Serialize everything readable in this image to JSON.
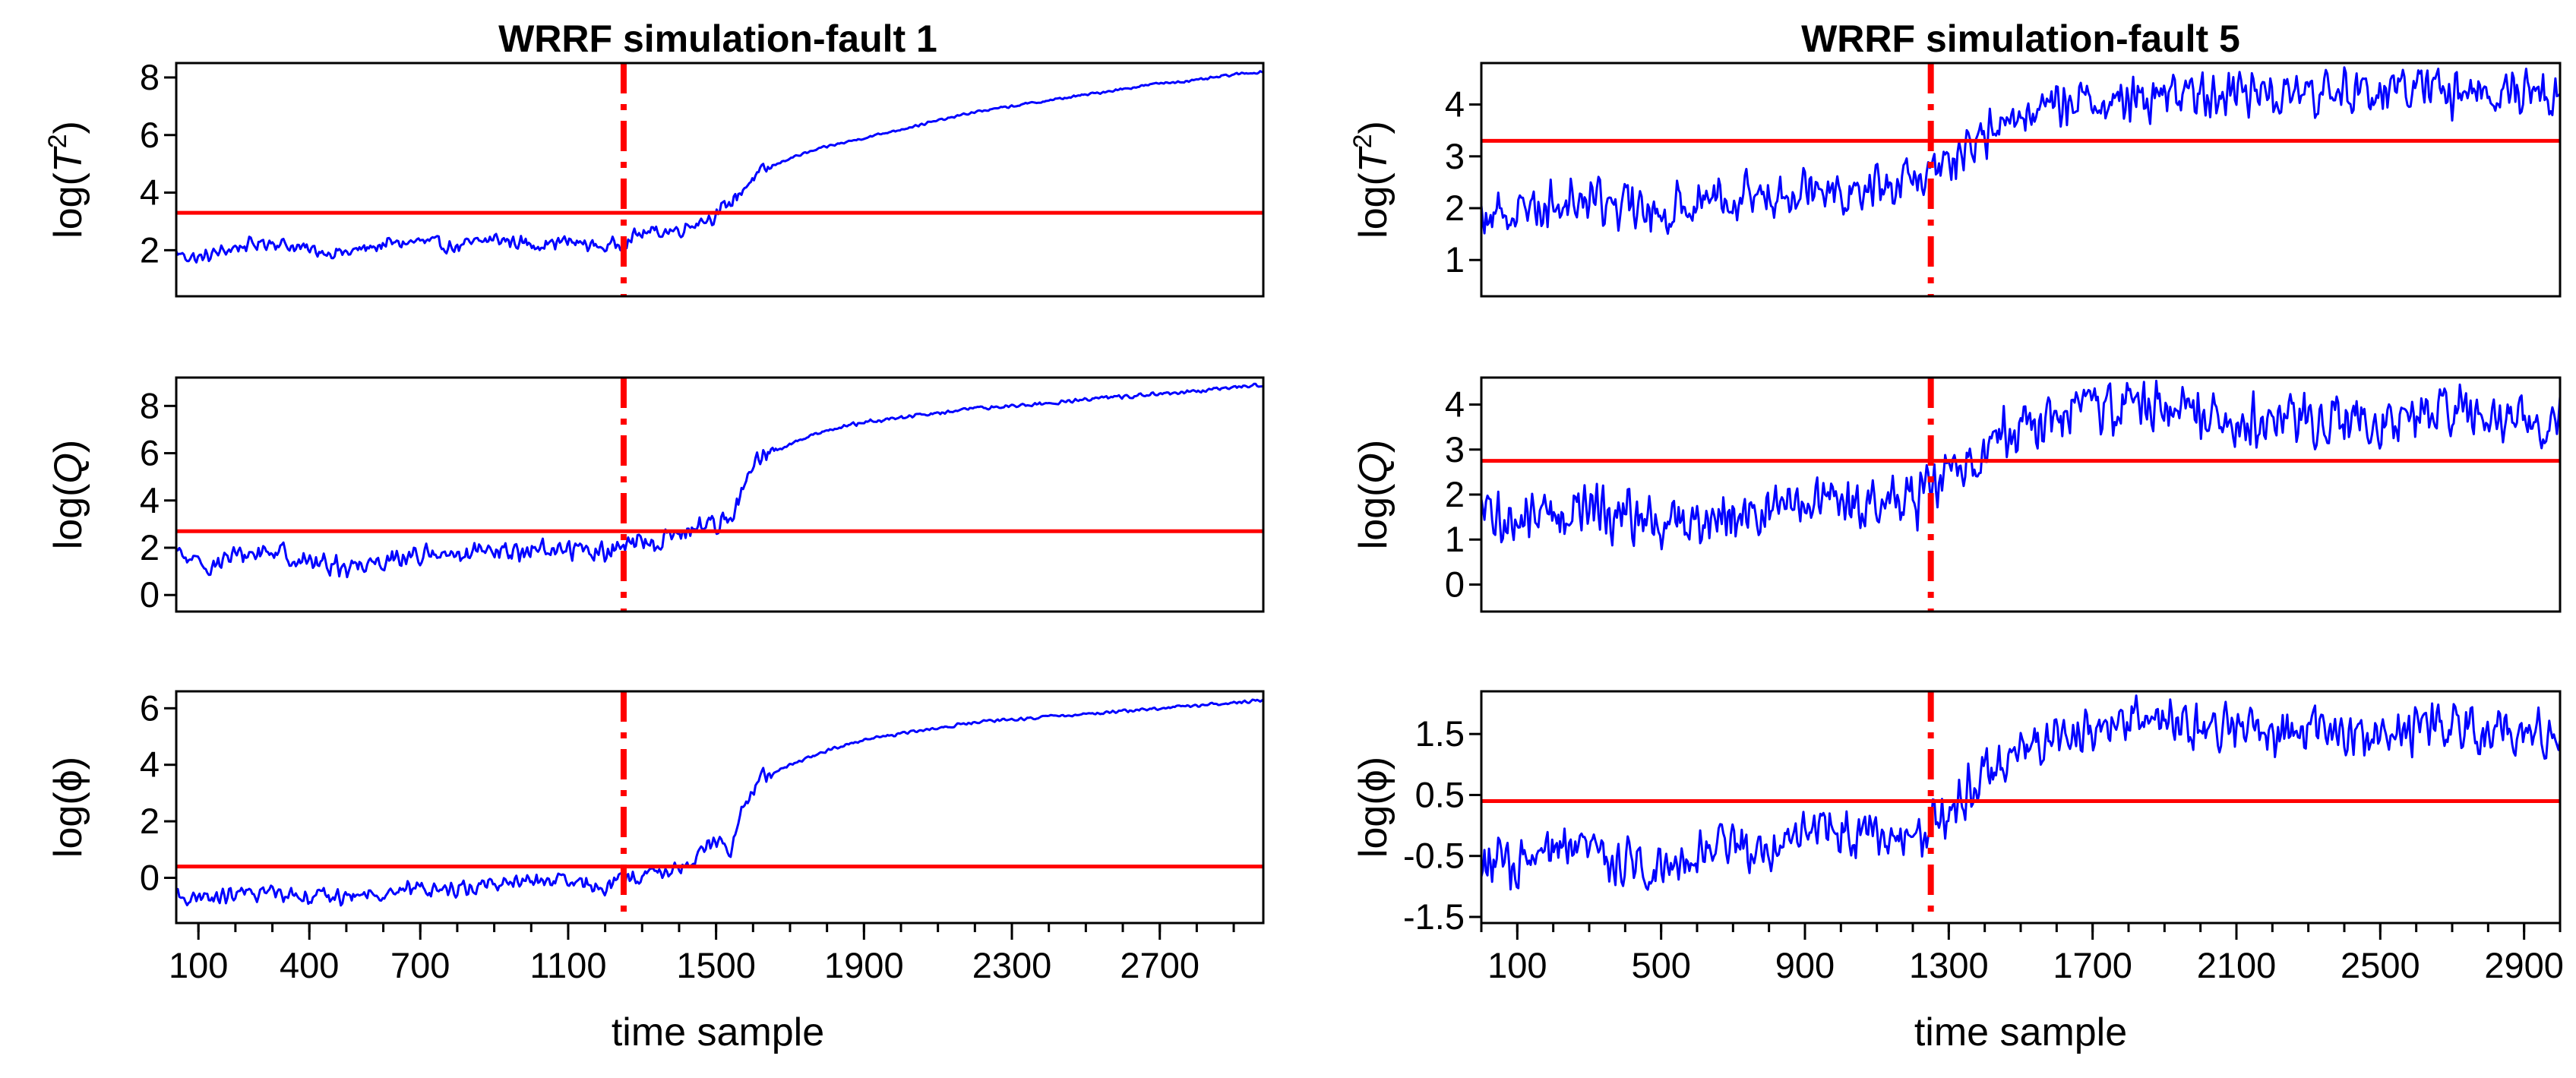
{
  "figure": {
    "xlabel": "time sample",
    "colors": {
      "series": "#0000ff",
      "threshold": "#ff0000",
      "fault": "#ff0000",
      "axis": "#000000"
    }
  },
  "chart_data": [
    {
      "type": "line",
      "column": "left",
      "row": 0,
      "title": "WRRF simulation-fault 1",
      "ylabel": "log(T²)",
      "ylabel_main": "log(",
      "ylabel_var": "T",
      "ylabel_sup": "2",
      "ylabel_close": ")",
      "xlim": [
        40,
        2980
      ],
      "ylim": [
        0.4,
        8.5
      ],
      "yticks": [
        2,
        4,
        6,
        8
      ],
      "ytick_labels": [
        "2",
        "4",
        "6",
        "8"
      ],
      "xticks": [],
      "xtick_labels": [],
      "fault_x": 1250,
      "threshold": 3.3,
      "series": {
        "name": "log(T²)",
        "x": [
          40,
          100,
          200,
          300,
          400,
          500,
          600,
          700,
          800,
          900,
          1000,
          1100,
          1200,
          1250,
          1300,
          1400,
          1450,
          1500,
          1550,
          1600,
          1650,
          1700,
          1800,
          1900,
          2000,
          2100,
          2200,
          2300,
          2400,
          2500,
          2600,
          2700,
          2800,
          2900,
          2980
        ],
        "y": [
          1.9,
          1.7,
          2.1,
          2.3,
          2.0,
          1.9,
          2.2,
          2.3,
          2.1,
          2.4,
          2.2,
          2.3,
          2.1,
          2.3,
          2.6,
          2.7,
          3.0,
          3.2,
          3.8,
          4.5,
          4.9,
          5.2,
          5.6,
          5.9,
          6.2,
          6.5,
          6.8,
          7.0,
          7.2,
          7.4,
          7.6,
          7.8,
          7.9,
          8.1,
          8.2
        ],
        "noise": 0.3
      }
    },
    {
      "type": "line",
      "column": "left",
      "row": 1,
      "title": "",
      "ylabel": "log(Q)",
      "ylabel_main": "log(",
      "ylabel_var": "Q",
      "ylabel_sup": "",
      "ylabel_close": ")",
      "xlim": [
        40,
        2980
      ],
      "ylim": [
        -0.7,
        9.2
      ],
      "yticks": [
        0,
        2,
        4,
        6,
        8
      ],
      "ytick_labels": [
        "0",
        "2",
        "4",
        "6",
        "8"
      ],
      "xticks": [],
      "xtick_labels": [],
      "fault_x": 1250,
      "threshold": 2.7,
      "series": {
        "name": "log(Q)",
        "x": [
          40,
          100,
          200,
          300,
          400,
          500,
          600,
          700,
          800,
          900,
          1000,
          1100,
          1200,
          1250,
          1300,
          1400,
          1450,
          1500,
          1550,
          1580,
          1620,
          1700,
          1800,
          1900,
          2000,
          2100,
          2200,
          2300,
          2400,
          2500,
          2600,
          2700,
          2800,
          2900,
          2980
        ],
        "y": [
          1.8,
          1.2,
          1.6,
          1.9,
          1.4,
          1.2,
          1.5,
          1.7,
          1.6,
          1.8,
          1.9,
          2.0,
          1.8,
          2.0,
          2.2,
          2.5,
          2.9,
          3.1,
          3.4,
          4.8,
          5.8,
          6.4,
          7.0,
          7.3,
          7.5,
          7.7,
          7.9,
          8.0,
          8.1,
          8.3,
          8.4,
          8.5,
          8.6,
          8.8,
          8.9
        ],
        "noise": 0.55
      }
    },
    {
      "type": "line",
      "column": "left",
      "row": 2,
      "title": "",
      "ylabel": "log(ϕ)",
      "ylabel_main": "log(",
      "ylabel_var": "ϕ",
      "ylabel_sup": "",
      "ylabel_close": ")",
      "xlim": [
        40,
        2980
      ],
      "ylim": [
        -1.6,
        6.6
      ],
      "yticks": [
        0,
        2,
        4,
        6
      ],
      "ytick_labels": [
        "0",
        "2",
        "4",
        "6"
      ],
      "xticks": [
        100,
        400,
        700,
        1100,
        1500,
        1900,
        2300,
        2700
      ],
      "xtick_labels": [
        "100",
        "400",
        "700",
        "1100",
        "1500",
        "1900",
        "2300",
        "2700"
      ],
      "fault_x": 1250,
      "threshold": 0.4,
      "series": {
        "name": "log(ϕ)",
        "x": [
          40,
          100,
          200,
          300,
          400,
          500,
          600,
          700,
          800,
          900,
          1000,
          1100,
          1200,
          1250,
          1300,
          1400,
          1450,
          1500,
          1540,
          1570,
          1620,
          1700,
          1800,
          1900,
          2000,
          2100,
          2200,
          2300,
          2400,
          2500,
          2600,
          2700,
          2800,
          2900,
          2980
        ],
        "y": [
          -0.6,
          -0.8,
          -0.6,
          -0.5,
          -0.6,
          -0.7,
          -0.5,
          -0.4,
          -0.4,
          -0.2,
          -0.1,
          -0.2,
          -0.3,
          -0.1,
          0.1,
          0.3,
          0.8,
          1.3,
          1.0,
          2.4,
          3.5,
          4.0,
          4.5,
          4.9,
          5.1,
          5.3,
          5.5,
          5.6,
          5.7,
          5.8,
          5.9,
          6.0,
          6.1,
          6.2,
          6.3
        ],
        "noise": 0.35
      }
    },
    {
      "type": "line",
      "column": "right",
      "row": 0,
      "title": "WRRF simulation-fault 5",
      "ylabel": "log(T²)",
      "ylabel_main": "log(",
      "ylabel_var": "T",
      "ylabel_sup": "2",
      "ylabel_close": ")",
      "xlim": [
        0,
        3000
      ],
      "ylim": [
        0.3,
        4.8
      ],
      "yticks": [
        1,
        2,
        3,
        4
      ],
      "ytick_labels": [
        "1",
        "2",
        "3",
        "4"
      ],
      "xticks": [],
      "xtick_labels": [],
      "fault_x": 1250,
      "threshold": 3.3,
      "series": {
        "name": "log(T²)",
        "x": [
          0,
          100,
          200,
          300,
          400,
          500,
          600,
          700,
          800,
          900,
          1000,
          1100,
          1200,
          1250,
          1300,
          1350,
          1400,
          1450,
          1500,
          1600,
          1700,
          1800,
          1900,
          2000,
          2100,
          2200,
          2300,
          2400,
          2500,
          2600,
          2700,
          2800,
          2900,
          3000
        ],
        "y": [
          1.8,
          2.0,
          2.1,
          2.2,
          2.0,
          1.9,
          2.2,
          2.3,
          2.2,
          2.6,
          2.3,
          2.4,
          2.5,
          2.6,
          2.9,
          3.1,
          3.4,
          3.6,
          3.8,
          4.0,
          4.1,
          4.1,
          4.2,
          4.2,
          4.2,
          4.3,
          4.2,
          4.2,
          4.3,
          4.3,
          4.2,
          4.3,
          4.3,
          4.2
        ],
        "noise": 0.55
      }
    },
    {
      "type": "line",
      "column": "right",
      "row": 1,
      "title": "",
      "ylabel": "log(Q)",
      "ylabel_main": "log(",
      "ylabel_var": "Q",
      "ylabel_sup": "",
      "ylabel_close": ")",
      "xlim": [
        0,
        3000
      ],
      "ylim": [
        -0.6,
        4.6
      ],
      "yticks": [
        0,
        1,
        2,
        3,
        4
      ],
      "ytick_labels": [
        "0",
        "1",
        "2",
        "3",
        "4"
      ],
      "xticks": [],
      "xtick_labels": [],
      "fault_x": 1250,
      "threshold": 2.75,
      "series": {
        "name": "log(Q)",
        "x": [
          0,
          100,
          200,
          300,
          400,
          500,
          600,
          700,
          800,
          900,
          1000,
          1100,
          1200,
          1250,
          1300,
          1350,
          1400,
          1500,
          1600,
          1700,
          1800,
          1900,
          2000,
          2100,
          2200,
          2300,
          2400,
          2500,
          2600,
          2700,
          2800,
          2900,
          3000
        ],
        "y": [
          1.5,
          1.4,
          1.6,
          1.7,
          1.5,
          1.3,
          1.4,
          1.7,
          1.6,
          1.9,
          1.7,
          1.8,
          1.9,
          2.0,
          2.4,
          2.7,
          3.1,
          3.5,
          3.7,
          3.9,
          4.0,
          4.0,
          3.9,
          3.7,
          3.6,
          3.7,
          3.8,
          3.5,
          3.7,
          3.8,
          3.6,
          3.7,
          3.5
        ],
        "noise": 0.75
      }
    },
    {
      "type": "line",
      "column": "right",
      "row": 2,
      "title": "",
      "ylabel": "log(ϕ)",
      "ylabel_main": "log(",
      "ylabel_var": "ϕ",
      "ylabel_sup": "",
      "ylabel_close": ")",
      "xlim": [
        0,
        3000
      ],
      "ylim": [
        -1.6,
        2.2
      ],
      "yticks": [
        -1.5,
        -0.5,
        0.5,
        1.5
      ],
      "ytick_labels": [
        "-1.5",
        "-0.5",
        "0.5",
        "1.5"
      ],
      "xticks": [
        100,
        500,
        900,
        1300,
        1700,
        2100,
        2500,
        2900
      ],
      "xtick_labels": [
        "100",
        "500",
        "900",
        "1300",
        "1700",
        "2100",
        "2500",
        "2900"
      ],
      "fault_x": 1250,
      "threshold": 0.4,
      "series": {
        "name": "log(ϕ)",
        "x": [
          0,
          100,
          200,
          300,
          400,
          500,
          600,
          700,
          800,
          900,
          1000,
          1100,
          1200,
          1250,
          1300,
          1350,
          1400,
          1500,
          1600,
          1700,
          1800,
          1900,
          2000,
          2100,
          2200,
          2300,
          2400,
          2500,
          2600,
          2700,
          2800,
          2900,
          3000
        ],
        "y": [
          -0.6,
          -0.7,
          -0.5,
          -0.4,
          -0.6,
          -0.7,
          -0.4,
          -0.3,
          -0.4,
          0.0,
          -0.1,
          -0.2,
          -0.3,
          -0.1,
          0.3,
          0.6,
          0.9,
          1.2,
          1.4,
          1.6,
          1.7,
          1.8,
          1.6,
          1.6,
          1.5,
          1.5,
          1.5,
          1.6,
          1.5,
          1.6,
          1.6,
          1.6,
          1.5
        ],
        "noise": 0.5
      }
    }
  ]
}
